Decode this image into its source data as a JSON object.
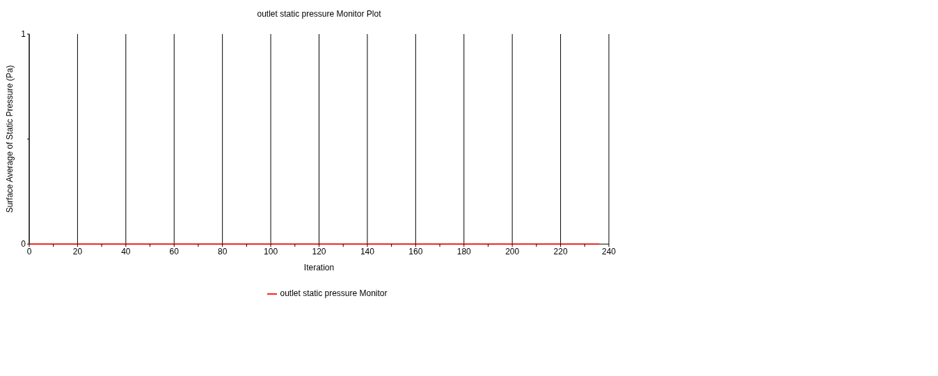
{
  "chart_data": {
    "type": "line",
    "title": "outlet static pressure Monitor Plot",
    "xlabel": "Iteration",
    "ylabel": "Surface Average of Static Pressure (Pa)",
    "x": [
      0,
      236
    ],
    "series": [
      {
        "name": "outlet static pressure Monitor",
        "color": "#ff0000",
        "values": [
          0,
          0
        ]
      }
    ],
    "xlim": [
      0,
      240
    ],
    "xticks": [
      0,
      {
        "value": 10,
        "label": null
      },
      20,
      {
        "value": 30,
        "label": null
      },
      40,
      {
        "value": 50,
        "label": null
      },
      60,
      {
        "value": 70,
        "label": null
      },
      80,
      {
        "value": 90,
        "label": null
      },
      100,
      {
        "value": 110,
        "label": null
      },
      120,
      {
        "value": 130,
        "label": null
      },
      140,
      {
        "value": 150,
        "label": null
      },
      160,
      {
        "value": 170,
        "label": null
      },
      180,
      {
        "value": 190,
        "label": null
      },
      200,
      {
        "value": 210,
        "label": null
      },
      220,
      {
        "value": 230,
        "label": null
      },
      240
    ],
    "ylim": [
      0,
      1
    ],
    "yticks": [
      0,
      {
        "value": 0.5,
        "label": null
      },
      1
    ],
    "grid": "x",
    "legend": "bottom",
    "marker": "none",
    "line_style": "solid"
  }
}
